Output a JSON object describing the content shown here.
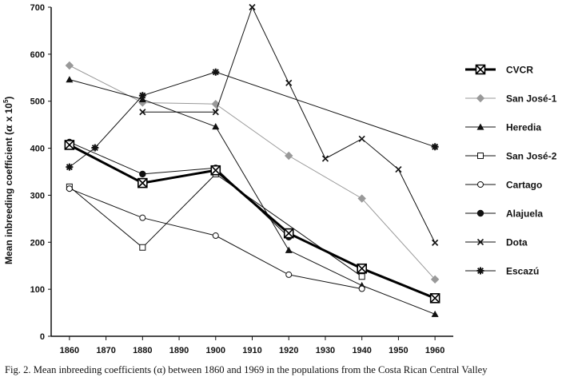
{
  "chart_data": {
    "type": "line",
    "ylabel_text": "Mean inbreeding coefficient (",
    "ylabel_symbol": "α",
    "ylabel_mult": " x 10",
    "ylabel_exp": "5",
    "ylabel_close": ")",
    "xlim": [
      1855,
      1965
    ],
    "ylim": [
      0,
      700
    ],
    "x_ticks": [
      1860,
      1870,
      1880,
      1890,
      1900,
      1910,
      1920,
      1930,
      1940,
      1950,
      1960
    ],
    "y_ticks": [
      0,
      100,
      200,
      300,
      400,
      500,
      600,
      700
    ],
    "legend_position": "right",
    "series": [
      {
        "name": "CVCR",
        "marker": "boxx",
        "color": "#000000",
        "width": 3,
        "x": [
          1860,
          1880,
          1900,
          1920,
          1940,
          1960
        ],
        "y": [
          407,
          326,
          353,
          219,
          144,
          81
        ]
      },
      {
        "name": "San José-1",
        "marker": "diamond",
        "color": "#999999",
        "width": 1,
        "x": [
          1860,
          1880,
          1900,
          1920,
          1940,
          1960
        ],
        "y": [
          576,
          497,
          494,
          384,
          293,
          121
        ]
      },
      {
        "name": "Heredia",
        "marker": "triangle",
        "color": "#111111",
        "width": 1,
        "x": [
          1860,
          1880,
          1900,
          1920,
          1940,
          1960
        ],
        "y": [
          546,
          504,
          446,
          183,
          108,
          47
        ]
      },
      {
        "name": "San José-2",
        "marker": "square",
        "color": "#111111",
        "width": 1,
        "x": [
          1860,
          1880,
          1900,
          1940
        ],
        "y": [
          318,
          189,
          345,
          127
        ]
      },
      {
        "name": "Cartago",
        "marker": "circle",
        "color": "#111111",
        "width": 1,
        "x": [
          1860,
          1880,
          1900,
          1920,
          1940
        ],
        "y": [
          314,
          252,
          214,
          131,
          101
        ]
      },
      {
        "name": "Alajuela",
        "marker": "dot",
        "color": "#111111",
        "width": 1,
        "x": [
          1860,
          1880,
          1900,
          1920
        ],
        "y": [
          413,
          345,
          358,
          211
        ]
      },
      {
        "name": "Dota",
        "marker": "x",
        "color": "#111111",
        "width": 1,
        "x": [
          1880,
          1900,
          1910,
          1920,
          1930,
          1940,
          1950,
          1960
        ],
        "y": [
          477,
          477,
          700,
          539,
          378,
          420,
          355,
          199
        ]
      },
      {
        "name": "Escazú",
        "marker": "star",
        "color": "#111111",
        "width": 1,
        "x": [
          1860,
          1867,
          1880,
          1900,
          1960
        ],
        "y": [
          360,
          401,
          512,
          562,
          403
        ]
      }
    ]
  },
  "caption_text": "Fig. 2. Mean inbreeding coefficients (α) between 1860 and 1969 in the populations from the Costa Rican Central Valley"
}
